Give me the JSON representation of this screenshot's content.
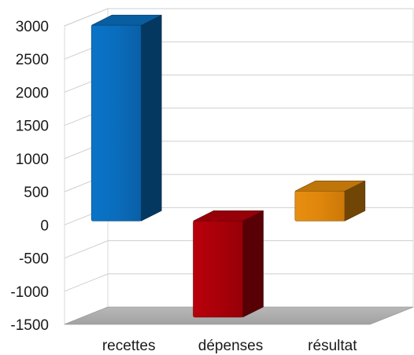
{
  "chart_data": {
    "type": "bar",
    "categories": [
      "recettes",
      "dépenses",
      "résultat"
    ],
    "values": [
      2950,
      -1450,
      450
    ],
    "ylim": [
      -1500,
      3000
    ],
    "yticks": [
      "3000",
      "2500",
      "2000",
      "1500",
      "1000",
      "500",
      "0",
      "-500",
      "-1000",
      "-1500"
    ],
    "grid": true,
    "legend": false,
    "colors": [
      "#0a6fbf",
      "#b0000a",
      "#e08a0c"
    ]
  }
}
